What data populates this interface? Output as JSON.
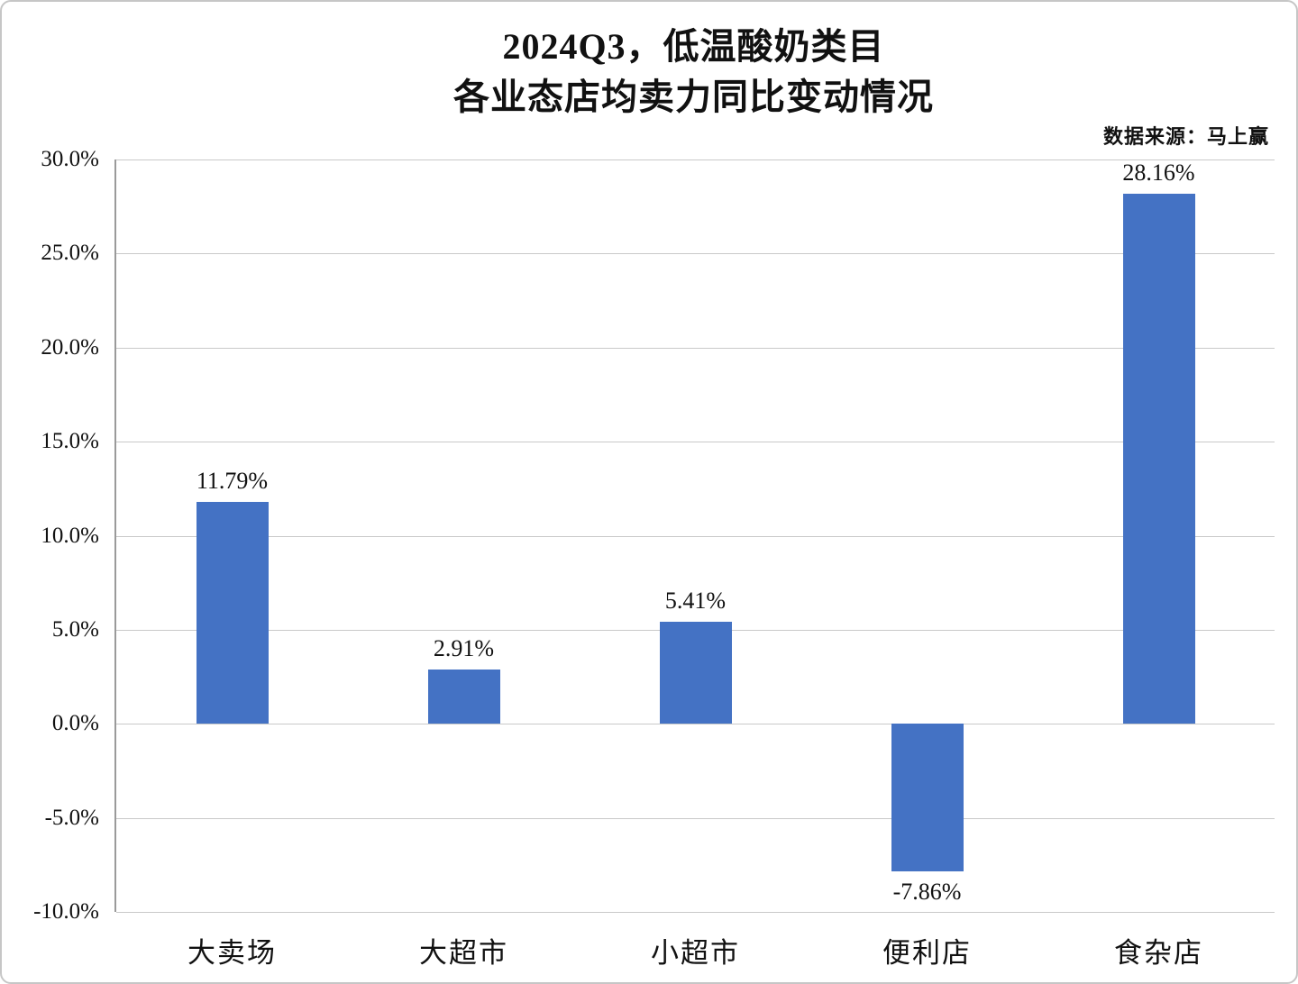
{
  "chart_data": {
    "type": "bar",
    "title": "2024Q3，低温酸奶类目 各业态店均卖力同比变动情况",
    "title_lines": [
      "2024Q3，低温酸奶类目",
      "各业态店均卖力同比变动情况"
    ],
    "source_note": "数据来源：马上赢",
    "categories": [
      "大卖场",
      "大超市",
      "小超市",
      "便利店",
      "食杂店"
    ],
    "values": [
      11.79,
      2.91,
      5.41,
      -7.86,
      28.16
    ],
    "data_labels": [
      "11.79%",
      "2.91%",
      "5.41%",
      "-7.86%",
      "28.16%"
    ],
    "xlabel": "",
    "ylabel": "",
    "ylim": [
      -10,
      30
    ],
    "ytick_values": [
      30,
      25,
      20,
      15,
      10,
      5,
      0,
      -5,
      -10
    ],
    "ytick_labels": [
      "30.0%",
      "25.0%",
      "20.0%",
      "15.0%",
      "10.0%",
      "5.0%",
      "0.0%",
      "-5.0%",
      "-10.0%"
    ],
    "bar_color": "#4472c4",
    "grid": true,
    "legend": "none"
  }
}
